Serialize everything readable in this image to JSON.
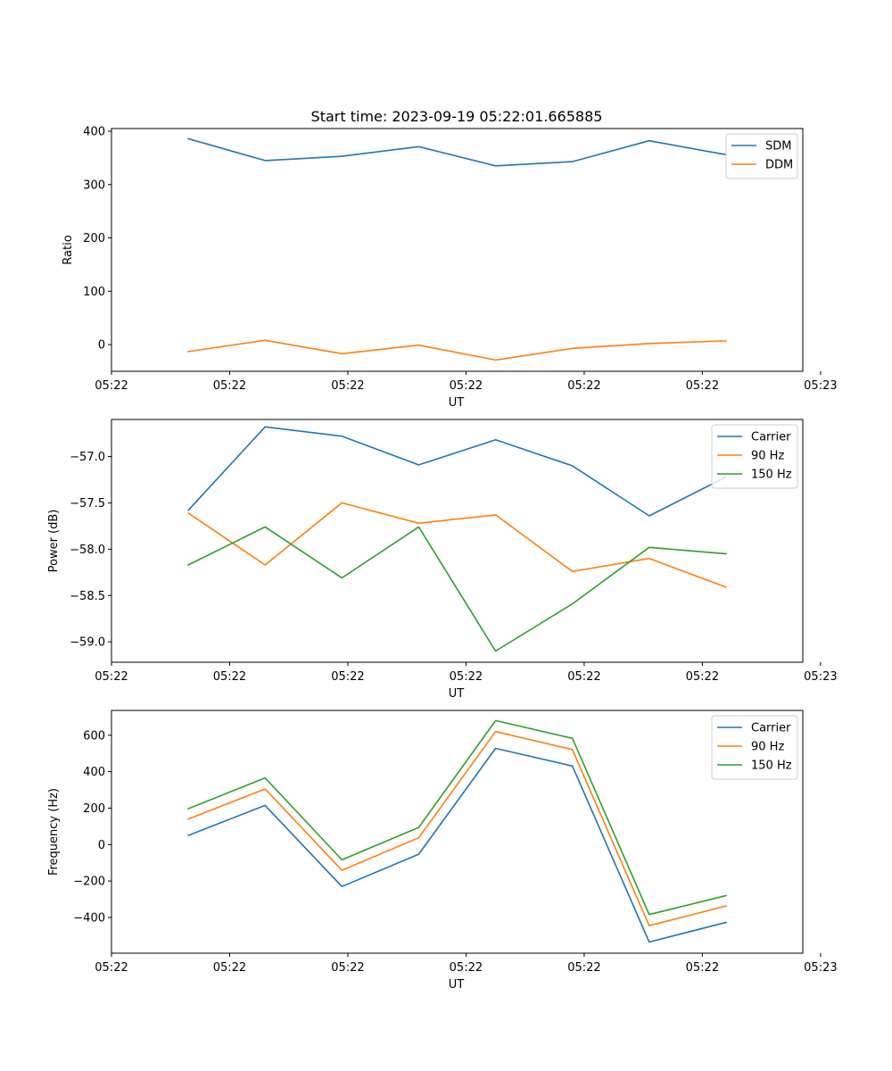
{
  "figure_title": "Start time: 2023-09-19 05:22:01.665885",
  "chart_data": [
    {
      "type": "line",
      "id": "ratio",
      "xlabel": "UT",
      "ylabel": "Ratio",
      "x": [
        1,
        2,
        3,
        4,
        5,
        6,
        7,
        8
      ],
      "xlim": [
        0,
        9
      ],
      "ylim": [
        -50,
        405
      ],
      "yticks": [
        0,
        100,
        200,
        300,
        400
      ],
      "ytick_labels": [
        "0",
        "100",
        "200",
        "300",
        "400"
      ],
      "xticks": [
        0,
        1.538,
        3.077,
        4.615,
        6.154,
        7.692,
        9.231
      ],
      "xtick_labels": [
        "05:22",
        "05:22",
        "05:22",
        "05:22",
        "05:22",
        "05:22",
        "05:23"
      ],
      "legend_position": "top-right",
      "series": [
        {
          "name": "SDM",
          "color": "#1f77b4",
          "values": [
            386,
            345,
            353,
            371,
            335,
            343,
            382,
            356
          ]
        },
        {
          "name": "DDM",
          "color": "#ff7f0e",
          "values": [
            -13,
            8,
            -17,
            -1,
            -29,
            -7,
            2,
            7
          ]
        }
      ]
    },
    {
      "type": "line",
      "id": "power",
      "xlabel": "UT",
      "ylabel": "Power (dB)",
      "x": [
        1,
        2,
        3,
        4,
        5,
        6,
        7,
        8
      ],
      "xlim": [
        0,
        9
      ],
      "ylim": [
        -59.22,
        -56.6
      ],
      "yticks": [
        -57.0,
        -57.5,
        -58.0,
        -58.5,
        -59.0
      ],
      "ytick_labels": [
        "−57.0",
        "−57.5",
        "−58.0",
        "−58.5",
        "−59.0"
      ],
      "xticks": [
        0,
        1.538,
        3.077,
        4.615,
        6.154,
        7.692,
        9.231
      ],
      "xtick_labels": [
        "05:22",
        "05:22",
        "05:22",
        "05:22",
        "05:22",
        "05:22",
        "05:23"
      ],
      "legend_position": "top-right",
      "series": [
        {
          "name": "Carrier",
          "color": "#1f77b4",
          "values": [
            -57.58,
            -56.68,
            -56.78,
            -57.09,
            -56.82,
            -57.1,
            -57.64,
            -57.22
          ]
        },
        {
          "name": "90 Hz",
          "color": "#ff7f0e",
          "values": [
            -57.61,
            -58.17,
            -57.5,
            -57.72,
            -57.63,
            -58.24,
            -58.1,
            -58.41
          ]
        },
        {
          "name": "150 Hz",
          "color": "#2ca02c",
          "values": [
            -58.17,
            -57.76,
            -58.31,
            -57.76,
            -59.1,
            -58.59,
            -57.98,
            -58.05
          ]
        }
      ]
    },
    {
      "type": "line",
      "id": "frequency",
      "xlabel": "UT",
      "ylabel": "Frequency (Hz)",
      "x": [
        1,
        2,
        3,
        4,
        5,
        6,
        7,
        8
      ],
      "xlim": [
        0,
        9
      ],
      "ylim": [
        -596,
        736
      ],
      "yticks": [
        600,
        400,
        200,
        0,
        -200,
        -400
      ],
      "ytick_labels": [
        "600",
        "400",
        "200",
        "0",
        "−200",
        "−400"
      ],
      "xticks": [
        0,
        1.538,
        3.077,
        4.615,
        6.154,
        7.692,
        9.231
      ],
      "xtick_labels": [
        "05:22",
        "05:22",
        "05:22",
        "05:22",
        "05:22",
        "05:22",
        "05:23"
      ],
      "legend_position": "top-right",
      "series": [
        {
          "name": "Carrier",
          "color": "#1f77b4",
          "values": [
            50,
            215,
            -230,
            -53,
            528,
            431,
            -535,
            -427
          ]
        },
        {
          "name": "90 Hz",
          "color": "#ff7f0e",
          "values": [
            140,
            305,
            -141,
            37,
            620,
            521,
            -445,
            -337
          ]
        },
        {
          "name": "150 Hz",
          "color": "#2ca02c",
          "values": [
            197,
            366,
            -84,
            94,
            680,
            583,
            -384,
            -280
          ]
        }
      ]
    }
  ]
}
